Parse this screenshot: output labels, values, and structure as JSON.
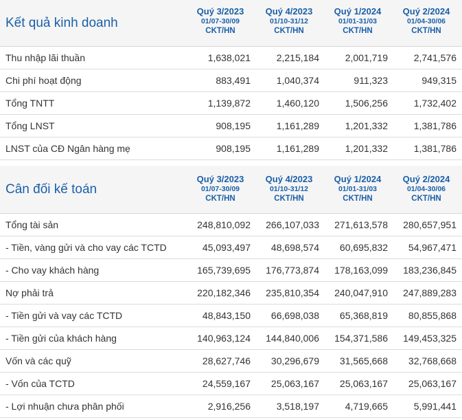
{
  "periods": [
    {
      "quarter": "Quý 3/2023",
      "range": "01/07-30/09",
      "unit": "CKT/HN"
    },
    {
      "quarter": "Quý 4/2023",
      "range": "01/10-31/12",
      "unit": "CKT/HN"
    },
    {
      "quarter": "Quý 1/2024",
      "range": "01/01-31/03",
      "unit": "CKT/HN"
    },
    {
      "quarter": "Quý 2/2024",
      "range": "01/04-30/06",
      "unit": "CKT/HN"
    }
  ],
  "income": {
    "title": "Kết quả kinh doanh",
    "rows": [
      {
        "label": "Thu nhập lãi thuần",
        "values": [
          "1,638,021",
          "2,215,184",
          "2,001,719",
          "2,741,576"
        ]
      },
      {
        "label": "Chi phí hoạt động",
        "values": [
          "883,491",
          "1,040,374",
          "911,323",
          "949,315"
        ]
      },
      {
        "label": "Tổng TNTT",
        "values": [
          "1,139,872",
          "1,460,120",
          "1,506,256",
          "1,732,402"
        ]
      },
      {
        "label": "Tổng LNST",
        "values": [
          "908,195",
          "1,161,289",
          "1,201,332",
          "1,381,786"
        ]
      },
      {
        "label": "LNST của CĐ Ngân hàng mẹ",
        "values": [
          "908,195",
          "1,161,289",
          "1,201,332",
          "1,381,786"
        ]
      }
    ]
  },
  "balance": {
    "title": "Cân đối kế toán",
    "rows": [
      {
        "label": "Tổng tài sản",
        "values": [
          "248,810,092",
          "266,107,033",
          "271,613,578",
          "280,657,951"
        ]
      },
      {
        "label": "- Tiền, vàng gửi và cho vay các TCTD",
        "values": [
          "45,093,497",
          "48,698,574",
          "60,695,832",
          "54,967,471"
        ]
      },
      {
        "label": "- Cho vay khách hàng",
        "values": [
          "165,739,695",
          "176,773,874",
          "178,163,099",
          "183,236,845"
        ]
      },
      {
        "label": "Nợ phải trả",
        "values": [
          "220,182,346",
          "235,810,354",
          "240,047,910",
          "247,889,283"
        ]
      },
      {
        "label": "- Tiền gửi và vay các TCTD",
        "values": [
          "48,843,150",
          "66,698,038",
          "65,368,819",
          "80,855,868"
        ]
      },
      {
        "label": "- Tiền gửi của khách hàng",
        "values": [
          "140,963,124",
          "144,840,006",
          "154,371,586",
          "149,453,325"
        ]
      },
      {
        "label": "Vốn và các quỹ",
        "values": [
          "28,627,746",
          "30,296,679",
          "31,565,668",
          "32,768,668"
        ]
      },
      {
        "label": "- Vốn của TCTD",
        "values": [
          "24,559,167",
          "25,063,167",
          "25,063,167",
          "25,063,167"
        ]
      },
      {
        "label": "- Lợi nhuận chưa phân phối",
        "values": [
          "2,916,256",
          "3,518,197",
          "4,719,665",
          "5,991,441"
        ]
      }
    ]
  }
}
